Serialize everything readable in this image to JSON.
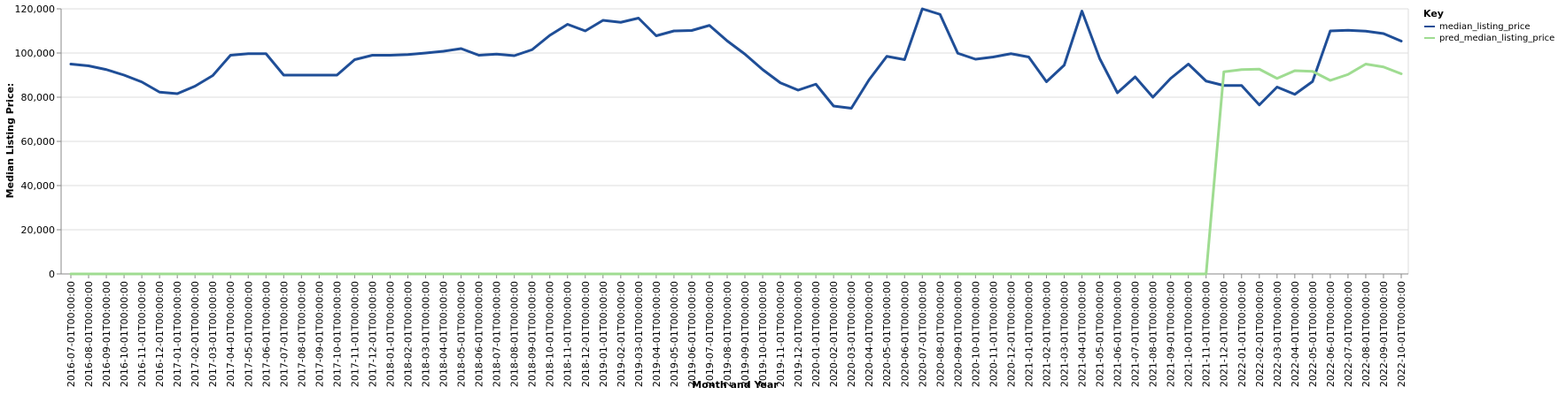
{
  "chart_data": {
    "type": "line",
    "xlabel": "Month and Year",
    "ylabel": "Median Listing Price:",
    "ylim": [
      0,
      120000
    ],
    "y_ticks": [
      0,
      20000,
      40000,
      60000,
      80000,
      100000,
      120000
    ],
    "y_tick_labels": [
      "0",
      "20,000",
      "40,000",
      "60,000",
      "80,000",
      "100,000",
      "120,000"
    ],
    "grid": true,
    "legend_position": "top-right",
    "legend_title": "Key",
    "categories": [
      "2016-07-01T00:00:00",
      "2016-08-01T00:00:00",
      "2016-09-01T00:00:00",
      "2016-10-01T00:00:00",
      "2016-11-01T00:00:00",
      "2016-12-01T00:00:00",
      "2017-01-01T00:00:00",
      "2017-02-01T00:00:00",
      "2017-03-01T00:00:00",
      "2017-04-01T00:00:00",
      "2017-05-01T00:00:00",
      "2017-06-01T00:00:00",
      "2017-07-01T00:00:00",
      "2017-08-01T00:00:00",
      "2017-09-01T00:00:00",
      "2017-10-01T00:00:00",
      "2017-11-01T00:00:00",
      "2017-12-01T00:00:00",
      "2018-01-01T00:00:00",
      "2018-02-01T00:00:00",
      "2018-03-01T00:00:00",
      "2018-04-01T00:00:00",
      "2018-05-01T00:00:00",
      "2018-06-01T00:00:00",
      "2018-07-01T00:00:00",
      "2018-08-01T00:00:00",
      "2018-09-01T00:00:00",
      "2018-10-01T00:00:00",
      "2018-11-01T00:00:00",
      "2018-12-01T00:00:00",
      "2019-01-01T00:00:00",
      "2019-02-01T00:00:00",
      "2019-03-01T00:00:00",
      "2019-04-01T00:00:00",
      "2019-05-01T00:00:00",
      "2019-06-01T00:00:00",
      "2019-07-01T00:00:00",
      "2019-08-01T00:00:00",
      "2019-09-01T00:00:00",
      "2019-10-01T00:00:00",
      "2019-11-01T00:00:00",
      "2019-12-01T00:00:00",
      "2020-01-01T00:00:00",
      "2020-02-01T00:00:00",
      "2020-03-01T00:00:00",
      "2020-04-01T00:00:00",
      "2020-05-01T00:00:00",
      "2020-06-01T00:00:00",
      "2020-07-01T00:00:00",
      "2020-08-01T00:00:00",
      "2020-09-01T00:00:00",
      "2020-10-01T00:00:00",
      "2020-11-01T00:00:00",
      "2020-12-01T00:00:00",
      "2021-01-01T00:00:00",
      "2021-02-01T00:00:00",
      "2021-03-01T00:00:00",
      "2021-04-01T00:00:00",
      "2021-05-01T00:00:00",
      "2021-06-01T00:00:00",
      "2021-07-01T00:00:00",
      "2021-08-01T00:00:00",
      "2021-09-01T00:00:00",
      "2021-10-01T00:00:00",
      "2021-11-01T00:00:00",
      "2021-12-01T00:00:00",
      "2022-01-01T00:00:00",
      "2022-02-01T00:00:00",
      "2022-03-01T00:00:00",
      "2022-04-01T00:00:00",
      "2022-05-01T00:00:00",
      "2022-06-01T00:00:00",
      "2022-07-01T00:00:00",
      "2022-08-01T00:00:00",
      "2022-09-01T00:00:00",
      "2022-10-01T00:00:00"
    ],
    "series": [
      {
        "name": "median_listing_price",
        "color": "#1f4e97",
        "values": [
          95000,
          94200,
          92500,
          90000,
          86900,
          82300,
          81600,
          85000,
          89800,
          99000,
          99700,
          99700,
          90000,
          90000,
          90000,
          90000,
          97000,
          99000,
          99000,
          99300,
          100000,
          100800,
          102000,
          99000,
          99500,
          98800,
          101500,
          108000,
          113000,
          110000,
          114800,
          113900,
          115800,
          107800,
          110000,
          110200,
          112500,
          105500,
          99500,
          92500,
          86500,
          83200,
          85900,
          76000,
          75000,
          87900,
          98500,
          97000,
          120000,
          117500,
          99900,
          97200,
          98200,
          99700,
          98200,
          87000,
          94500,
          119000,
          97500,
          82000,
          89200,
          80000,
          88500,
          95000,
          87300,
          85300,
          85300,
          76500,
          84600,
          81300,
          87100,
          110000,
          110300,
          109900,
          108800,
          105400
        ]
      },
      {
        "name": "pred_median_listing_price",
        "color": "#9fdc91",
        "values": [
          0,
          0,
          0,
          0,
          0,
          0,
          0,
          0,
          0,
          0,
          0,
          0,
          0,
          0,
          0,
          0,
          0,
          0,
          0,
          0,
          0,
          0,
          0,
          0,
          0,
          0,
          0,
          0,
          0,
          0,
          0,
          0,
          0,
          0,
          0,
          0,
          0,
          0,
          0,
          0,
          0,
          0,
          0,
          0,
          0,
          0,
          0,
          0,
          0,
          0,
          0,
          0,
          0,
          0,
          0,
          0,
          0,
          0,
          0,
          0,
          0,
          0,
          0,
          0,
          0,
          91500,
          92500,
          92700,
          88500,
          92000,
          91700,
          87600,
          90300,
          95000,
          93700,
          90600
        ]
      }
    ]
  }
}
